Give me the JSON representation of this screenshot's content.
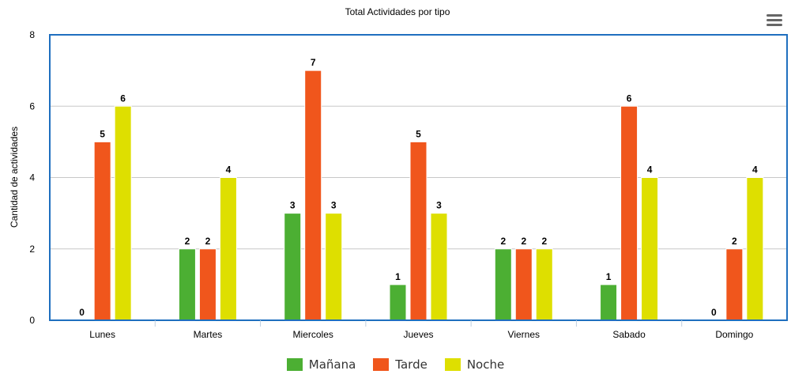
{
  "chart_data": {
    "type": "bar",
    "title": "Total Actividades por tipo",
    "xlabel": "",
    "ylabel": "Cantidad de actividades",
    "categories": [
      "Lunes",
      "Martes",
      "Miercoles",
      "Jueves",
      "Viernes",
      "Sabado",
      "Domingo"
    ],
    "series": [
      {
        "name": "Mañana",
        "color": "#4caf33",
        "values": [
          0,
          2,
          3,
          1,
          2,
          1,
          0
        ]
      },
      {
        "name": "Tarde",
        "color": "#f0561c",
        "values": [
          5,
          2,
          7,
          5,
          2,
          6,
          2
        ]
      },
      {
        "name": "Noche",
        "color": "#dedf00",
        "values": [
          6,
          4,
          3,
          3,
          2,
          4,
          4
        ]
      }
    ],
    "ylim": [
      0,
      8
    ],
    "yticks": [
      0,
      2,
      4,
      6,
      8
    ],
    "grid": true,
    "legend": "bottom-center",
    "plot_border_color": "#1f6fbf"
  },
  "menu": {
    "icon": "hamburger-menu-icon"
  }
}
